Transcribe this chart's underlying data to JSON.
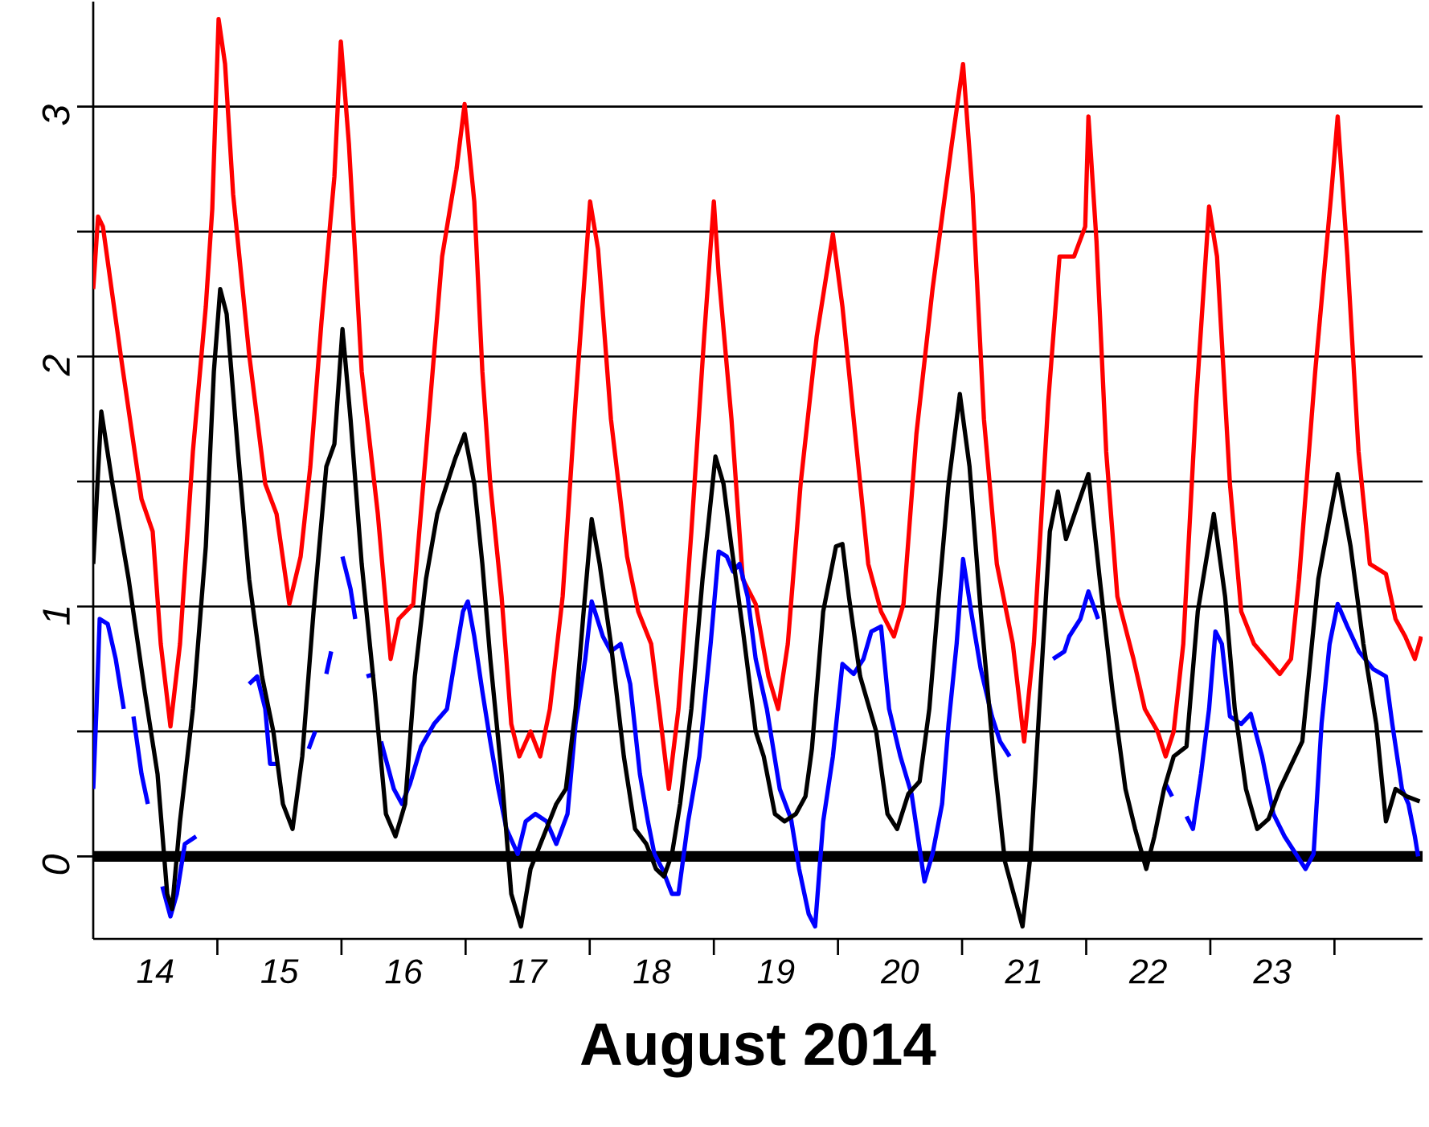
{
  "chart_data": {
    "type": "line",
    "xlabel": "August 2014",
    "xlim": [
      14,
      24.71
    ],
    "ylim": [
      -0.33,
      3.42
    ],
    "xticks": [
      {
        "value": 14.5,
        "label": "14"
      },
      {
        "value": 15.5,
        "label": "15"
      },
      {
        "value": 16.5,
        "label": "16"
      },
      {
        "value": 17.5,
        "label": "17"
      },
      {
        "value": 18.5,
        "label": "18"
      },
      {
        "value": 19.5,
        "label": "19"
      },
      {
        "value": 20.5,
        "label": "20"
      },
      {
        "value": 21.5,
        "label": "21"
      },
      {
        "value": 22.5,
        "label": "22"
      },
      {
        "value": 23.5,
        "label": "23"
      },
      {
        "value": 15,
        "label": null
      },
      {
        "value": 16,
        "label": null
      },
      {
        "value": 17,
        "label": null
      },
      {
        "value": 18,
        "label": null
      },
      {
        "value": 19,
        "label": null
      },
      {
        "value": 20,
        "label": null
      },
      {
        "value": 21,
        "label": null
      },
      {
        "value": 22,
        "label": null
      },
      {
        "value": 23,
        "label": null
      },
      {
        "value": 24,
        "label": null
      }
    ],
    "yticks": [
      0,
      {
        "value": 0.5,
        "label": null
      },
      1,
      {
        "value": 1.5,
        "label": null
      },
      2,
      {
        "value": 2.5,
        "label": null
      },
      3
    ],
    "grid": "y",
    "marker": "none",
    "ref_lines": [
      {
        "axis": "y",
        "value": 0,
        "color": "#000000"
      }
    ],
    "series": [
      {
        "color": "#ff0000",
        "x": [
          14.0,
          14.039,
          14.078,
          14.22,
          14.389,
          14.479,
          14.544,
          14.622,
          14.699,
          14.803,
          14.907,
          14.959,
          15.01,
          15.062,
          15.127,
          15.256,
          15.386,
          15.477,
          15.58,
          15.671,
          15.749,
          15.839,
          15.943,
          15.995,
          16.06,
          16.163,
          16.293,
          16.396,
          16.461,
          16.578,
          16.681,
          16.811,
          16.927,
          16.992,
          17.07,
          17.135,
          17.199,
          17.29,
          17.368,
          17.433,
          17.523,
          17.601,
          17.679,
          17.782,
          17.886,
          18.003,
          18.067,
          18.171,
          18.301,
          18.391,
          18.495,
          18.56,
          18.637,
          18.715,
          18.819,
          18.922,
          19.0,
          19.039,
          19.142,
          19.233,
          19.337,
          19.44,
          19.518,
          19.596,
          19.699,
          19.829,
          19.959,
          20.036,
          20.153,
          20.244,
          20.347,
          20.451,
          20.528,
          20.632,
          20.762,
          20.917,
          21.008,
          21.085,
          21.176,
          21.28,
          21.409,
          21.5,
          21.578,
          21.694,
          21.785,
          21.902,
          21.992,
          22.018,
          22.083,
          22.161,
          22.251,
          22.381,
          22.472,
          22.575,
          22.64,
          22.705,
          22.782,
          22.886,
          22.99,
          23.054,
          23.158,
          23.249,
          23.352,
          23.456,
          23.56,
          23.65,
          23.715,
          23.845,
          23.974,
          24.026,
          24.104,
          24.194,
          24.285,
          24.415,
          24.492,
          24.57,
          24.648,
          24.699
        ],
        "values": [
          2.27,
          2.56,
          2.52,
          2.01,
          1.43,
          1.3,
          0.85,
          0.52,
          0.85,
          1.62,
          2.2,
          2.59,
          3.35,
          3.17,
          2.65,
          2.01,
          1.49,
          1.37,
          1.01,
          1.2,
          1.56,
          2.14,
          2.72,
          3.26,
          2.85,
          1.94,
          1.37,
          0.79,
          0.95,
          1.01,
          1.62,
          2.4,
          2.75,
          3.01,
          2.62,
          1.94,
          1.49,
          1.04,
          0.53,
          0.4,
          0.5,
          0.4,
          0.59,
          1.04,
          1.82,
          2.62,
          2.43,
          1.75,
          1.2,
          0.98,
          0.85,
          0.59,
          0.27,
          0.59,
          1.3,
          2.08,
          2.62,
          2.33,
          1.75,
          1.11,
          1.01,
          0.72,
          0.59,
          0.85,
          1.49,
          2.08,
          2.49,
          2.2,
          1.62,
          1.17,
          0.98,
          0.88,
          1.01,
          1.69,
          2.27,
          2.85,
          3.17,
          2.65,
          1.75,
          1.17,
          0.85,
          0.46,
          0.85,
          1.82,
          2.4,
          2.4,
          2.52,
          2.96,
          2.46,
          1.62,
          1.04,
          0.79,
          0.59,
          0.5,
          0.4,
          0.5,
          0.85,
          1.82,
          2.6,
          2.4,
          1.49,
          0.98,
          0.85,
          0.79,
          0.73,
          0.79,
          1.11,
          1.94,
          2.65,
          2.96,
          2.4,
          1.62,
          1.17,
          1.13,
          0.95,
          0.88,
          0.79,
          0.88
        ]
      },
      {
        "color": "#0000ff",
        "x": [
          14.0,
          14.026,
          14.052,
          14.117,
          14.181,
          14.246,
          14.285,
          14.324,
          14.389,
          14.44,
          14.5,
          14.557,
          14.622,
          14.674,
          14.738,
          14.829,
          15.0,
          15.256,
          15.321,
          15.386,
          15.425,
          15.49,
          15.6,
          15.736,
          15.788,
          15.83,
          15.878,
          15.917,
          15.96,
          16.008,
          16.073,
          16.111,
          16.15,
          16.202,
          16.267,
          16.29,
          16.319,
          16.422,
          16.487,
          16.552,
          16.642,
          16.746,
          16.85,
          16.915,
          16.979,
          17.018,
          17.07,
          17.135,
          17.199,
          17.264,
          17.329,
          17.42,
          17.484,
          17.562,
          17.653,
          17.731,
          17.821,
          17.886,
          17.964,
          18.016,
          18.106,
          18.171,
          18.249,
          18.326,
          18.404,
          18.469,
          18.521,
          18.585,
          18.663,
          18.715,
          18.793,
          18.883,
          18.974,
          19.039,
          19.104,
          19.155,
          19.207,
          19.272,
          19.337,
          19.427,
          19.531,
          19.622,
          19.687,
          19.764,
          19.816,
          19.881,
          19.959,
          20.036,
          20.127,
          20.205,
          20.269,
          20.347,
          20.412,
          20.503,
          20.593,
          20.697,
          20.762,
          20.839,
          20.891,
          20.956,
          21.008,
          21.073,
          21.15,
          21.241,
          21.306,
          21.383,
          21.5,
          21.733,
          21.824,
          21.863,
          21.953,
          22.018,
          22.096,
          22.3,
          22.64,
          22.692,
          22.75,
          22.808,
          22.86,
          22.925,
          22.99,
          23.041,
          23.093,
          23.158,
          23.249,
          23.326,
          23.417,
          23.508,
          23.598,
          23.689,
          23.767,
          23.832,
          23.896,
          23.961,
          24.026,
          24.104,
          24.197,
          24.311,
          24.415,
          24.466,
          24.544,
          24.596,
          24.648,
          24.674
        ],
        "values": [
          0.27,
          0.59,
          0.95,
          0.93,
          0.79,
          0.59,
          null,
          0.56,
          0.33,
          0.21,
          null,
          -0.12,
          -0.24,
          -0.15,
          0.05,
          0.08,
          null,
          0.69,
          0.72,
          0.59,
          0.37,
          0.37,
          null,
          0.43,
          0.5,
          null,
          0.73,
          0.82,
          null,
          1.2,
          1.07,
          0.95,
          null,
          0.72,
          0.73,
          null,
          0.46,
          0.27,
          0.21,
          0.29,
          0.44,
          0.53,
          0.59,
          0.79,
          0.98,
          1.02,
          0.88,
          0.66,
          0.46,
          0.27,
          0.11,
          0.01,
          0.14,
          0.17,
          0.14,
          0.05,
          0.17,
          0.53,
          0.79,
          1.02,
          0.88,
          0.82,
          0.85,
          0.69,
          0.33,
          0.14,
          0.01,
          -0.05,
          -0.15,
          -0.15,
          0.14,
          0.4,
          0.85,
          1.22,
          1.2,
          1.14,
          1.17,
          1.04,
          0.79,
          0.59,
          0.27,
          0.15,
          -0.05,
          -0.23,
          -0.28,
          0.14,
          0.4,
          0.77,
          0.73,
          0.79,
          0.9,
          0.92,
          0.59,
          0.4,
          0.25,
          -0.1,
          0.01,
          0.21,
          0.53,
          0.85,
          1.19,
          0.98,
          0.75,
          0.56,
          0.46,
          0.4,
          null,
          0.79,
          0.82,
          0.88,
          0.95,
          1.06,
          0.95,
          null,
          0.29,
          0.24,
          null,
          0.16,
          0.11,
          0.33,
          0.59,
          0.9,
          0.85,
          0.56,
          0.53,
          0.57,
          0.4,
          0.17,
          0.08,
          0.01,
          -0.05,
          0.01,
          0.53,
          0.85,
          1.01,
          0.92,
          0.82,
          0.75,
          0.72,
          0.53,
          0.27,
          0.21,
          0.08,
          0.0
        ]
      },
      {
        "color": "#000000",
        "x": [
          14.0,
          14.065,
          14.155,
          14.285,
          14.415,
          14.518,
          14.596,
          14.635,
          14.699,
          14.803,
          14.907,
          14.972,
          15.023,
          15.075,
          15.166,
          15.256,
          15.36,
          15.451,
          15.528,
          15.606,
          15.684,
          15.775,
          15.878,
          15.943,
          16.008,
          16.073,
          16.163,
          16.267,
          16.358,
          16.435,
          16.513,
          16.591,
          16.681,
          16.772,
          16.915,
          16.992,
          17.07,
          17.135,
          17.199,
          17.29,
          17.368,
          17.446,
          17.523,
          17.627,
          17.731,
          17.808,
          17.886,
          17.951,
          18.016,
          18.08,
          18.171,
          18.275,
          18.365,
          18.456,
          18.534,
          18.598,
          18.663,
          18.728,
          18.819,
          18.909,
          19.013,
          19.078,
          19.142,
          19.233,
          19.337,
          19.402,
          19.492,
          19.57,
          19.661,
          19.738,
          19.79,
          19.881,
          19.984,
          20.036,
          20.088,
          20.179,
          20.308,
          20.399,
          20.477,
          20.567,
          20.658,
          20.736,
          20.801,
          20.891,
          20.982,
          21.06,
          21.15,
          21.254,
          21.345,
          21.487,
          21.552,
          21.63,
          21.707,
          21.772,
          21.837,
          21.927,
          22.018,
          22.109,
          22.212,
          22.316,
          22.394,
          22.484,
          22.549,
          22.627,
          22.705,
          22.808,
          22.899,
          23.028,
          23.119,
          23.197,
          23.287,
          23.378,
          23.469,
          23.56,
          23.741,
          23.87,
          24.026,
          24.13,
          24.233,
          24.337,
          24.415,
          24.492,
          24.583,
          24.687
        ],
        "values": [
          1.17,
          1.78,
          1.49,
          1.11,
          0.66,
          0.33,
          -0.15,
          -0.21,
          0.14,
          0.59,
          1.24,
          1.94,
          2.27,
          2.17,
          1.62,
          1.11,
          0.72,
          0.5,
          0.21,
          0.11,
          0.4,
          0.98,
          1.56,
          1.65,
          2.11,
          1.75,
          1.17,
          0.66,
          0.17,
          0.08,
          0.21,
          0.72,
          1.11,
          1.37,
          1.59,
          1.69,
          1.49,
          1.17,
          0.79,
          0.33,
          -0.15,
          -0.28,
          -0.05,
          0.08,
          0.21,
          0.27,
          0.59,
          0.98,
          1.35,
          1.17,
          0.85,
          0.4,
          0.11,
          0.05,
          -0.05,
          -0.08,
          0.01,
          0.21,
          0.59,
          1.11,
          1.6,
          1.49,
          1.24,
          0.91,
          0.5,
          0.4,
          0.17,
          0.14,
          0.17,
          0.24,
          0.43,
          0.98,
          1.24,
          1.25,
          1.04,
          0.72,
          0.5,
          0.17,
          0.11,
          0.25,
          0.3,
          0.59,
          0.98,
          1.49,
          1.85,
          1.56,
          0.98,
          0.4,
          -0.02,
          -0.28,
          0.01,
          0.66,
          1.3,
          1.46,
          1.27,
          1.4,
          1.53,
          1.11,
          0.66,
          0.27,
          0.11,
          -0.05,
          0.08,
          0.27,
          0.4,
          0.44,
          0.98,
          1.37,
          1.04,
          0.59,
          0.27,
          0.11,
          0.15,
          0.27,
          0.46,
          1.11,
          1.53,
          1.24,
          0.85,
          0.53,
          0.14,
          0.27,
          0.24,
          0.22
        ]
      }
    ]
  }
}
